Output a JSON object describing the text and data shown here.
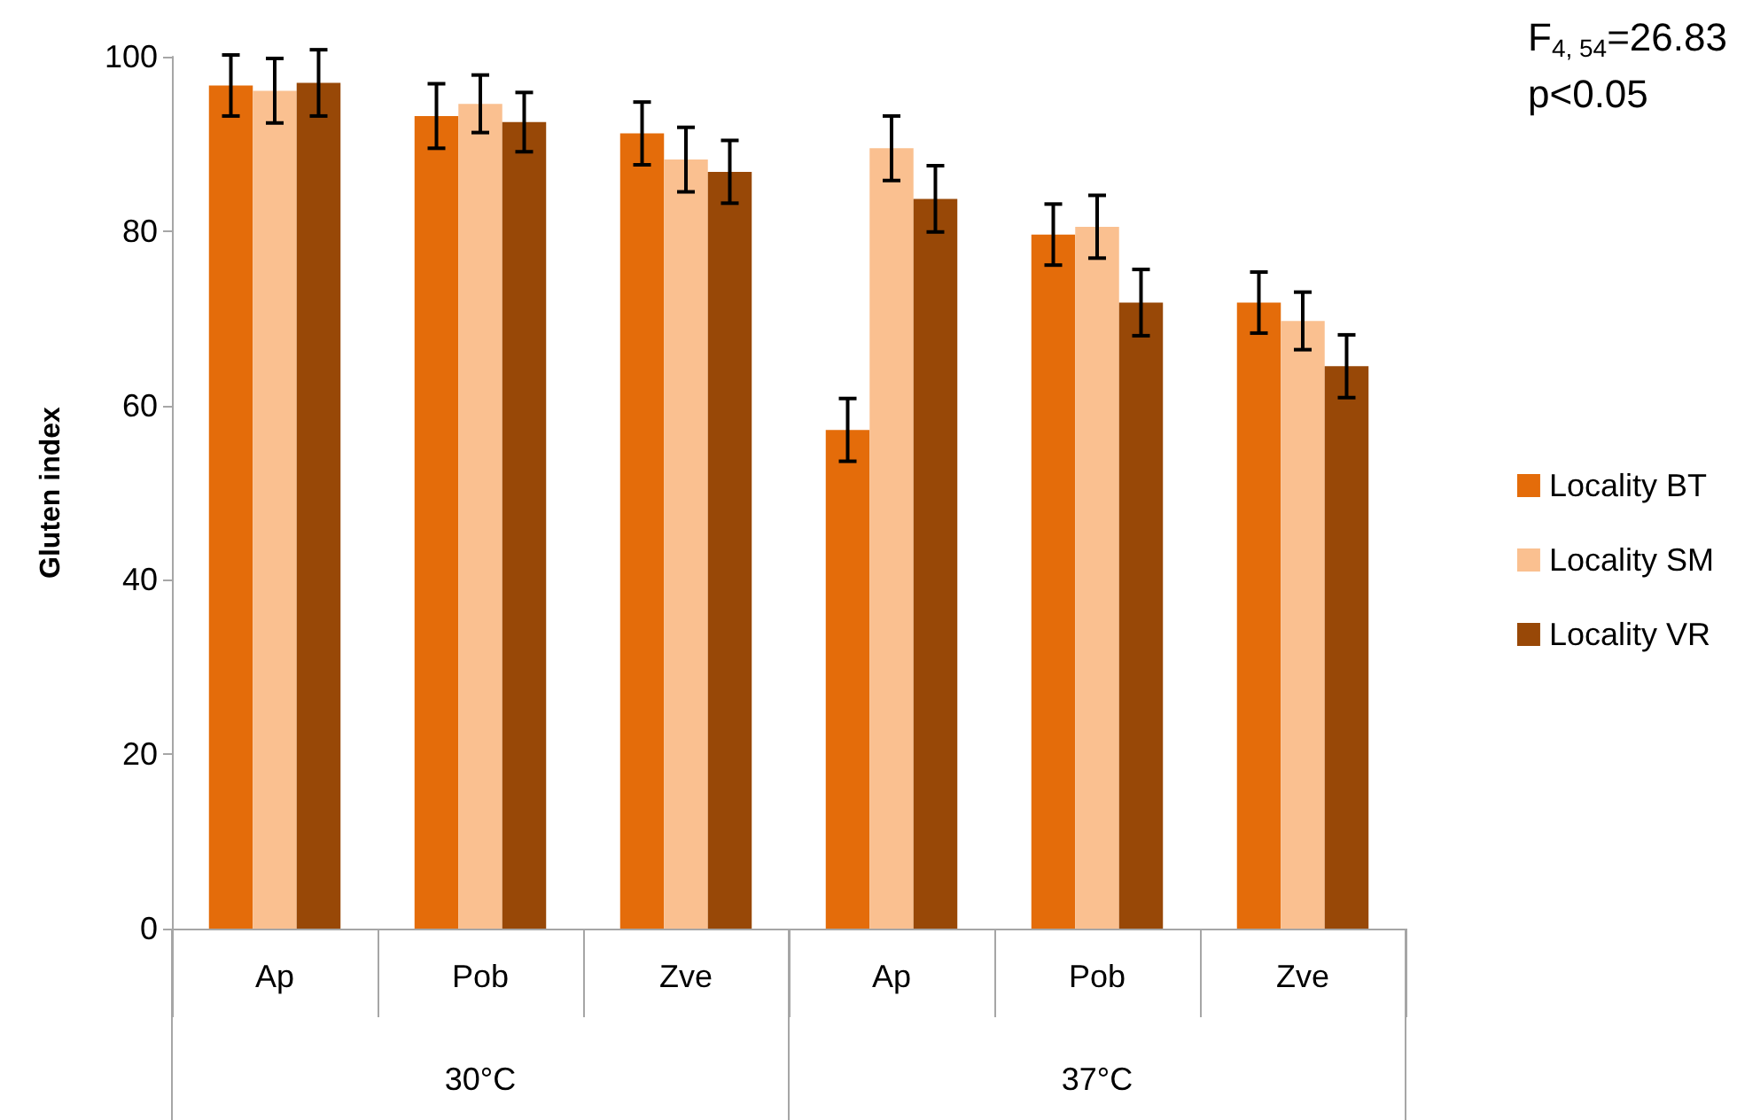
{
  "chart_data": {
    "type": "bar",
    "ylabel": "Gluten index",
    "categories": [
      "Ap",
      "Pob",
      "Zve",
      "Ap",
      "Pob",
      "Zve"
    ],
    "series": [
      {
        "name": "Locality BT",
        "color": "#e46c0a",
        "values": [
          96.7,
          93.2,
          91.2,
          57.2,
          79.6,
          71.8
        ],
        "errors": [
          3.5,
          3.7,
          3.6,
          3.6,
          3.5,
          3.5
        ]
      },
      {
        "name": "Locality SM",
        "color": "#fac090",
        "values": [
          96.1,
          94.6,
          88.2,
          89.5,
          80.5,
          69.7
        ],
        "errors": [
          3.7,
          3.3,
          3.7,
          3.7,
          3.6,
          3.3
        ]
      },
      {
        "name": "Locality VR",
        "color": "#984807",
        "values": [
          97.0,
          92.5,
          86.8,
          83.7,
          71.8,
          64.5
        ],
        "errors": [
          3.8,
          3.4,
          3.6,
          3.8,
          3.8,
          3.6
        ]
      }
    ],
    "annotations": [
      "F$_{4, 54}$=26.83",
      "p<0.05",
      "30°C",
      "37°C"
    ],
    "ylim": [
      0,
      100
    ],
    "yticks": [
      0,
      20,
      40,
      60,
      80,
      100
    ],
    "grid": false,
    "legend": "right"
  }
}
